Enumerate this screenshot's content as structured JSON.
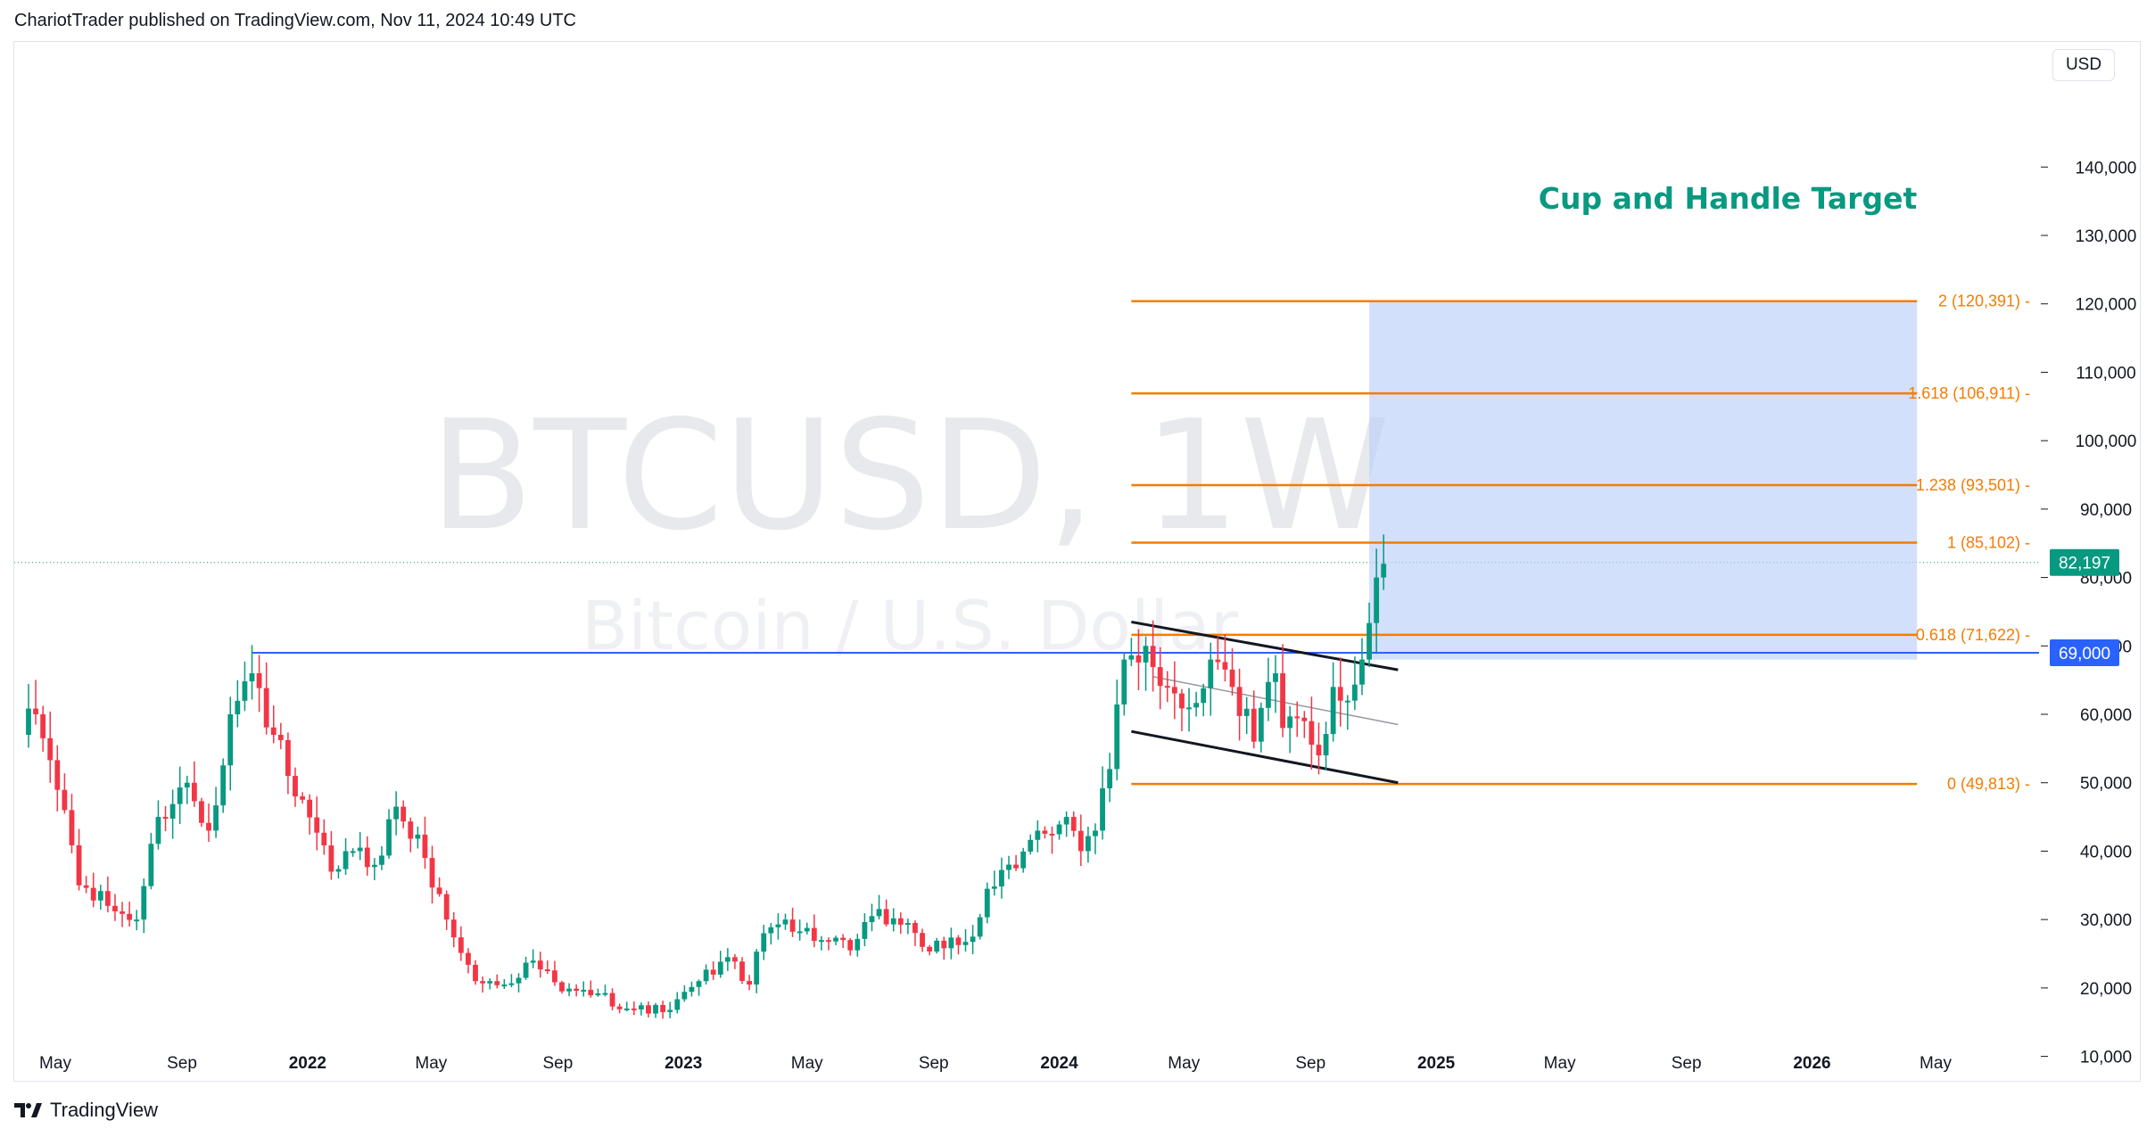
{
  "header": "ChariotTrader published on TradingView.com, Nov 11, 2024 10:49 UTC",
  "currency": "USD",
  "footer": {
    "brand": "TradingView",
    "logo_icon": "tradingview-logo-icon"
  },
  "chart_data": {
    "type": "candlestick",
    "symbol_watermark": "BTCUSD, 1W",
    "subtitle_watermark": "Bitcoin / U.S. Dollar",
    "annotation": "Cup and Handle Target",
    "ylim": [
      0,
      150000
    ],
    "y_ticks": [
      {
        "value": 140000,
        "label": "140,000"
      },
      {
        "value": 130000,
        "label": "130,000"
      },
      {
        "value": 120000,
        "label": "120,000"
      },
      {
        "value": 110000,
        "label": "110,000"
      },
      {
        "value": 100000,
        "label": "100,000"
      },
      {
        "value": 90000,
        "label": "90,000"
      },
      {
        "value": 80000,
        "label": "80,000"
      },
      {
        "value": 70000,
        "label": "70,000"
      },
      {
        "value": 60000,
        "label": "60,000"
      },
      {
        "value": 50000,
        "label": "50,000"
      },
      {
        "value": 40000,
        "label": "40,000"
      },
      {
        "value": 30000,
        "label": "30,000"
      },
      {
        "value": 20000,
        "label": "20,000"
      },
      {
        "value": 10000,
        "label": "10,000"
      }
    ],
    "x_ticks": [
      {
        "date": "2021-05-01",
        "label": "May",
        "bold": false
      },
      {
        "date": "2021-09-01",
        "label": "Sep",
        "bold": false
      },
      {
        "date": "2022-01-01",
        "label": "2022",
        "bold": true
      },
      {
        "date": "2022-05-01",
        "label": "May",
        "bold": false
      },
      {
        "date": "2022-09-01",
        "label": "Sep",
        "bold": false
      },
      {
        "date": "2023-01-01",
        "label": "2023",
        "bold": true
      },
      {
        "date": "2023-05-01",
        "label": "May",
        "bold": false
      },
      {
        "date": "2023-09-01",
        "label": "Sep",
        "bold": false
      },
      {
        "date": "2024-01-01",
        "label": "2024",
        "bold": true
      },
      {
        "date": "2024-05-01",
        "label": "May",
        "bold": false
      },
      {
        "date": "2024-09-01",
        "label": "Sep",
        "bold": false
      },
      {
        "date": "2025-01-01",
        "label": "2025",
        "bold": true
      },
      {
        "date": "2025-05-01",
        "label": "May",
        "bold": false
      },
      {
        "date": "2025-09-01",
        "label": "Sep",
        "bold": false
      },
      {
        "date": "2026-01-01",
        "label": "2026",
        "bold": true
      },
      {
        "date": "2026-05-01",
        "label": "May",
        "bold": false
      }
    ],
    "anchors": [
      [
        "2021-03-29",
        57000
      ],
      [
        "2021-04-12",
        60000
      ],
      [
        "2021-05-10",
        46000
      ],
      [
        "2021-05-24",
        35000
      ],
      [
        "2021-06-21",
        32000
      ],
      [
        "2021-07-19",
        30000
      ],
      [
        "2021-08-09",
        45000
      ],
      [
        "2021-09-06",
        50000
      ],
      [
        "2021-09-27",
        43000
      ],
      [
        "2021-10-18",
        60000
      ],
      [
        "2021-11-08",
        66000
      ],
      [
        "2021-11-29",
        57000
      ],
      [
        "2021-12-20",
        48000
      ],
      [
        "2022-01-24",
        37000
      ],
      [
        "2022-02-14",
        40000
      ],
      [
        "2022-03-07",
        38000
      ],
      [
        "2022-03-28",
        46500
      ],
      [
        "2022-04-25",
        39000
      ],
      [
        "2022-05-16",
        30000
      ],
      [
        "2022-06-13",
        21000
      ],
      [
        "2022-07-11",
        20500
      ],
      [
        "2022-08-08",
        24000
      ],
      [
        "2022-09-05",
        19500
      ],
      [
        "2022-10-10",
        19200
      ],
      [
        "2022-11-07",
        17000
      ],
      [
        "2022-12-19",
        16800
      ],
      [
        "2023-01-16",
        21000
      ],
      [
        "2023-02-13",
        24500
      ],
      [
        "2023-03-06",
        20500
      ],
      [
        "2023-03-20",
        28000
      ],
      [
        "2023-04-10",
        30000
      ],
      [
        "2023-05-15",
        27000
      ],
      [
        "2023-06-12",
        25500
      ],
      [
        "2023-07-03",
        30500
      ],
      [
        "2023-08-07",
        29500
      ],
      [
        "2023-08-21",
        26000
      ],
      [
        "2023-09-11",
        25800
      ],
      [
        "2023-10-09",
        27500
      ],
      [
        "2023-10-23",
        34500
      ],
      [
        "2023-11-20",
        37500
      ],
      [
        "2023-12-11",
        43000
      ],
      [
        "2024-01-08",
        45000
      ],
      [
        "2024-01-22",
        40000
      ],
      [
        "2024-02-05",
        43000
      ],
      [
        "2024-02-19",
        52000
      ],
      [
        "2024-03-04",
        68000
      ],
      [
        "2024-03-25",
        70000
      ],
      [
        "2024-04-15",
        64000
      ],
      [
        "2024-05-06",
        61000
      ],
      [
        "2024-05-27",
        68000
      ],
      [
        "2024-06-17",
        64000
      ],
      [
        "2024-07-08",
        56000
      ],
      [
        "2024-07-29",
        66000
      ],
      [
        "2024-08-05",
        58000
      ],
      [
        "2024-08-26",
        59000
      ],
      [
        "2024-09-09",
        54000
      ],
      [
        "2024-09-23",
        64000
      ],
      [
        "2024-10-07",
        62000
      ],
      [
        "2024-10-21",
        68000
      ],
      [
        "2024-11-04",
        80000
      ],
      [
        "2024-11-11",
        82000
      ]
    ],
    "last_price": {
      "value": 82197,
      "label": "82,197",
      "color": "#089981"
    },
    "resistance": {
      "value": 69000,
      "label": "69,000",
      "start": "2021-11-08",
      "color": "#2962ff"
    },
    "fib_levels": [
      {
        "ratio": "2",
        "value": 120391,
        "label": "2 (120,391)"
      },
      {
        "ratio": "1.618",
        "value": 106911,
        "label": "1.618 (106,911)"
      },
      {
        "ratio": "1.238",
        "value": 93501,
        "label": "1.238 (93,501)"
      },
      {
        "ratio": "1",
        "value": 85102,
        "label": "1 (85,102)"
      },
      {
        "ratio": "0.618",
        "value": 71622,
        "label": "0.618 (71,622)"
      },
      {
        "ratio": "0",
        "value": 49813,
        "label": "0 (49,813)"
      }
    ],
    "fib_start": "2024-03-11",
    "target_box": {
      "from_date": "2024-10-28",
      "to_date": "2026-04-13",
      "low": 68000,
      "high": 120391,
      "color": "#bbd0fb"
    },
    "channel": {
      "upper": [
        [
          "2024-03-11",
          73500
        ],
        [
          "2024-11-25",
          66500
        ]
      ],
      "lower": [
        [
          "2024-03-11",
          57500
        ],
        [
          "2024-11-25",
          50000
        ]
      ],
      "mid": [
        [
          "2024-04-01",
          65500
        ],
        [
          "2024-11-25",
          58500
        ]
      ]
    },
    "colors": {
      "up": "#089981",
      "down": "#f23645",
      "fib": "#f57c00",
      "channel": "#131722"
    }
  }
}
